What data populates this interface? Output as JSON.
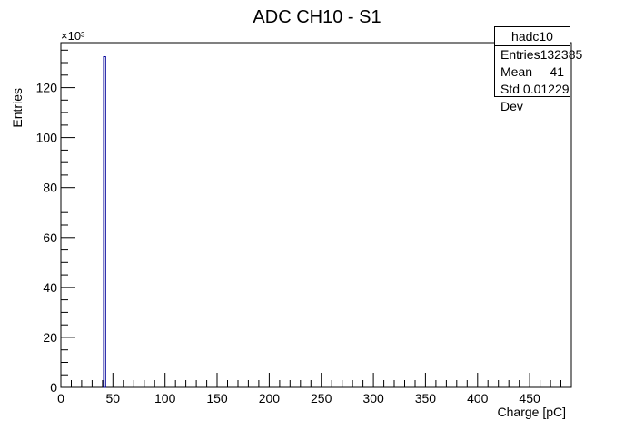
{
  "chart_data": {
    "type": "bar",
    "title": "ADC CH10 - S1",
    "xlabel": "Charge [pC]",
    "ylabel": "Entries",
    "y_multiplier_label": "×10³",
    "xlim": [
      0,
      490
    ],
    "ylim": [
      0,
      138
    ],
    "x_ticks": [
      0,
      50,
      100,
      150,
      200,
      250,
      300,
      350,
      400,
      450
    ],
    "x_tick_labels": [
      "0",
      "50",
      "100",
      "150",
      "200",
      "250",
      "300",
      "350",
      "400",
      "450"
    ],
    "y_ticks": [
      0,
      20,
      40,
      60,
      80,
      100,
      120
    ],
    "y_tick_labels": [
      "0",
      "20",
      "40",
      "60",
      "80",
      "100",
      "120"
    ],
    "bins": [
      {
        "x_low": 41,
        "x_high": 43,
        "value": 132.385
      }
    ],
    "bar_color": "#000099",
    "grid": false,
    "legend": "none"
  },
  "stats": {
    "title": "hadc10",
    "rows": [
      {
        "label": "Entries",
        "value": "132385"
      },
      {
        "label": "Mean",
        "value": "41"
      },
      {
        "label": "Std Dev",
        "value": "0.01229"
      }
    ]
  }
}
